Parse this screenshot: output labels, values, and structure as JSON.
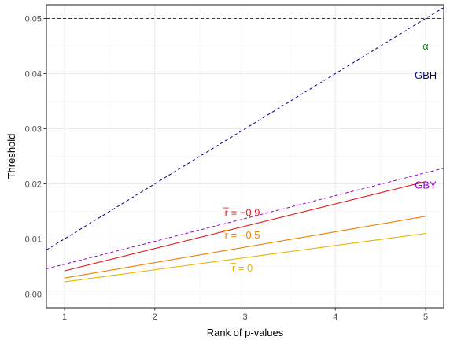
{
  "chart_data": {
    "type": "line",
    "xlabel": "Rank of p-values",
    "ylabel": "Threshold",
    "xlim": [
      0.8,
      5.2
    ],
    "ylim": [
      -0.0025,
      0.0525
    ],
    "x_ticks": [
      1,
      2,
      3,
      4,
      5
    ],
    "y_ticks": [
      0.0,
      0.01,
      0.02,
      0.03,
      0.04,
      0.05
    ],
    "x_tick_labels": [
      "1",
      "2",
      "3",
      "4",
      "5"
    ],
    "y_tick_labels": [
      "0.00",
      "0.01",
      "0.02",
      "0.03",
      "0.04",
      "0.05"
    ],
    "grid": true,
    "reference_lines": [
      {
        "id": "alpha",
        "kind": "hline",
        "y": 0.05,
        "color": "#006400",
        "dash": true
      },
      {
        "id": "gbh",
        "kind": "abline",
        "intercept": 0,
        "slope": 0.01,
        "color": "#00008B",
        "dash": true
      },
      {
        "id": "gby",
        "kind": "abline",
        "intercept": 0.00125,
        "slope": 0.00415,
        "color": "#9400D3",
        "dash": true
      }
    ],
    "series": [
      {
        "id": "r09",
        "color": "#E31A1C",
        "x": [
          1,
          5
        ],
        "y": [
          0.0042,
          0.0204
        ]
      },
      {
        "id": "r05",
        "color": "#F07F00",
        "x": [
          1,
          5
        ],
        "y": [
          0.0029,
          0.0141
        ]
      },
      {
        "id": "r0",
        "color": "#E8B400",
        "x": [
          1,
          5
        ],
        "y": [
          0.0022,
          0.011
        ]
      }
    ],
    "annotations": [
      {
        "id": "alpha",
        "text": "α",
        "x": 5.0,
        "y": 0.045,
        "color": "#228B22"
      },
      {
        "id": "gbh",
        "text": "GBH",
        "x": 5.0,
        "y": 0.0397,
        "color": "#00008B"
      },
      {
        "id": "gby",
        "text": "GBY",
        "x": 5.0,
        "y": 0.0198,
        "color": "#9400D3"
      },
      {
        "id": "r09",
        "text": "r̅ = −0.9",
        "x": 2.97,
        "y": 0.0148,
        "color": "#E31A1C"
      },
      {
        "id": "r05",
        "text": "r̅ = −0.5",
        "x": 2.97,
        "y": 0.0107,
        "color": "#F07F00"
      },
      {
        "id": "r0",
        "text": "r̅ = 0",
        "x": 2.97,
        "y": 0.0047,
        "color": "#E8B400"
      }
    ]
  }
}
